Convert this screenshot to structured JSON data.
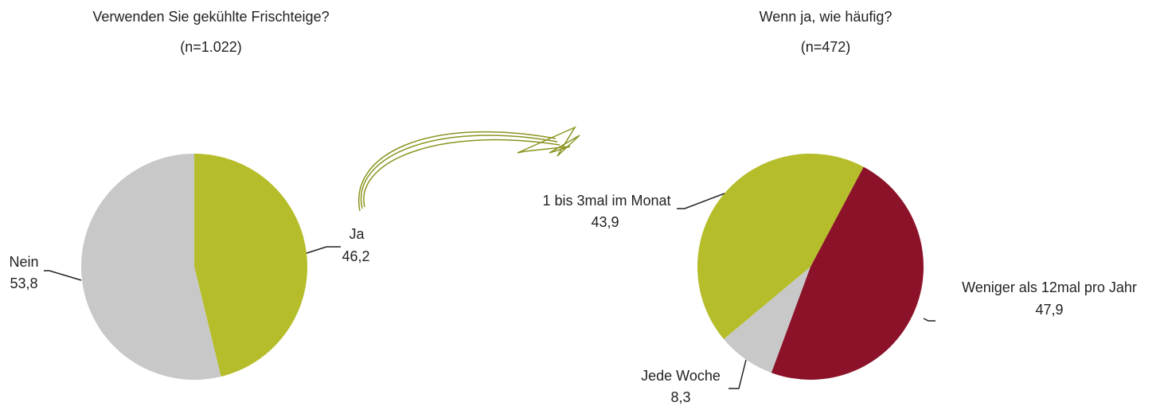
{
  "chart_data": [
    {
      "type": "pie",
      "title": "Verwenden Sie gekühlte Frischteige?",
      "subtitle": "(n=1.022)",
      "categories": [
        "Ja",
        "Nein"
      ],
      "values": [
        46.2,
        53.8
      ],
      "value_labels": [
        "46,2",
        "53,8"
      ],
      "colors": [
        "#b5bd2a",
        "#c8c8c8"
      ]
    },
    {
      "type": "pie",
      "title": "Wenn ja, wie häufig?",
      "subtitle": "(n=472)",
      "categories": [
        "Weniger als 12mal pro Jahr",
        "Jede Woche",
        "1 bis 3mal im Monat"
      ],
      "values": [
        47.9,
        8.3,
        43.9
      ],
      "value_labels": [
        "47,9",
        "8,3",
        "43,9"
      ],
      "colors": [
        "#8b1229",
        "#c8c8c8",
        "#b5bd2a"
      ]
    }
  ]
}
